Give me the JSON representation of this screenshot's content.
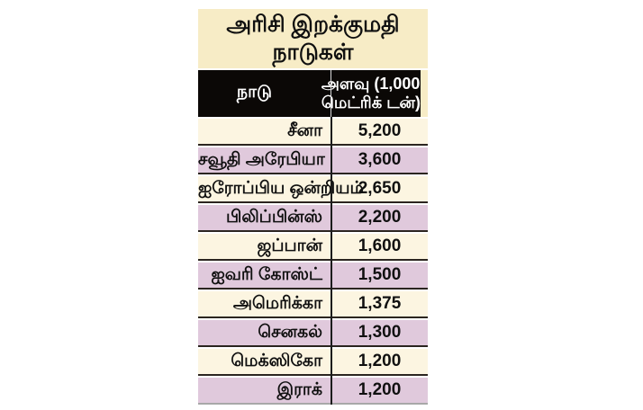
{
  "title": {
    "line1": "அரிசி இறக்குமதி",
    "line2": "நாடுகள்"
  },
  "table": {
    "header": {
      "country_label": "நாடு",
      "amount_label_line1": "அளவு (1,000",
      "amount_label_line2": "மெட்ரிக் டன்)"
    },
    "rows": [
      {
        "country": "சீனா",
        "value": "5,200"
      },
      {
        "country": "சவூதி அரேபியா",
        "value": "3,600"
      },
      {
        "country": "ஐரோப்பிய ஒன்றியம்",
        "value": "2,650"
      },
      {
        "country": "பிலிப்பின்ஸ்",
        "value": "2,200"
      },
      {
        "country": "ஜப்பான்",
        "value": "1,600"
      },
      {
        "country": "ஐவரி கோஸ்ட்",
        "value": "1,500"
      },
      {
        "country": "அமெரிக்கா",
        "value": "1,375"
      },
      {
        "country": "செனகல்",
        "value": "1,300"
      },
      {
        "country": "மெக்ஸிகோ",
        "value": "1,200"
      },
      {
        "country": "இராக்",
        "value": "1,200"
      }
    ]
  },
  "chart_data": {
    "type": "table",
    "title": "அரிசி இறக்குமதி நாடுகள்",
    "columns": [
      "நாடு",
      "அளவு (1,000 மெட்ரிக் டன்)"
    ],
    "categories": [
      "சீனா",
      "சவூதி அரேபியா",
      "ஐரோப்பிய ஒன்றியம்",
      "பிலிப்பின்ஸ்",
      "ஜப்பான்",
      "ஐவரி கோஸ்ட்",
      "அமெரிக்கா",
      "செனகல்",
      "மெக்ஸிகோ",
      "இராக்"
    ],
    "values": [
      5200,
      3600,
      2650,
      2200,
      1600,
      1500,
      1375,
      1300,
      1200,
      1200
    ],
    "unit": "1,000 மெட்ரிக் டன்",
    "layout": "alternating row shading, black header row, values right column"
  },
  "colors": {
    "page-bg": "#FFFFFF",
    "title-bg": "#F7ECC6",
    "header-bg": "#0B0806",
    "header-text": "#FFFFFF",
    "header-divider": "#D8D8D8",
    "row-light": "#FCF5E1",
    "row-purple": "#E0C9DC",
    "separator": "#2B2520",
    "divider-dark": "#1C1C1C",
    "bottom-edge": "#A8A8A8"
  }
}
